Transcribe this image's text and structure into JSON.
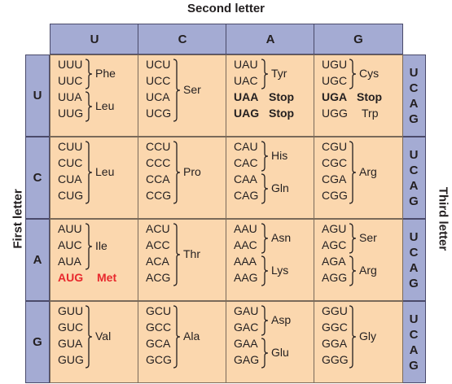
{
  "titles": {
    "second": "Second letter",
    "first": "First letter",
    "third": "Third letter"
  },
  "bases": [
    "U",
    "C",
    "A",
    "G"
  ],
  "third_column": [
    "U",
    "C",
    "A",
    "G"
  ],
  "cells": [
    [
      {
        "codons": [
          "UUU",
          "UUC",
          "UUA",
          "UUG"
        ],
        "groups": [
          {
            "rows": [
              0,
              1
            ],
            "aa": "Phe"
          },
          {
            "rows": [
              2,
              3
            ],
            "aa": "Leu"
          }
        ]
      },
      {
        "codons": [
          "UCU",
          "UCC",
          "UCA",
          "UCG"
        ],
        "groups": [
          {
            "rows": [
              0,
              3
            ],
            "aa": "Ser"
          }
        ]
      },
      {
        "codons": [
          "UAU",
          "UAC",
          "UAA",
          "UAG"
        ],
        "groups": [
          {
            "rows": [
              0,
              1
            ],
            "aa": "Tyr"
          }
        ],
        "singles": [
          {
            "row": 2,
            "aa": "Stop",
            "style": "stop"
          },
          {
            "row": 3,
            "aa": "Stop",
            "style": "stop"
          }
        ]
      },
      {
        "codons": [
          "UGU",
          "UGC",
          "UGA",
          "UGG"
        ],
        "groups": [
          {
            "rows": [
              0,
              1
            ],
            "aa": "Cys"
          }
        ],
        "singles": [
          {
            "row": 2,
            "aa": "Stop",
            "style": "stop"
          },
          {
            "row": 3,
            "aa": "Trp",
            "style": "plain"
          }
        ]
      }
    ],
    [
      {
        "codons": [
          "CUU",
          "CUC",
          "CUA",
          "CUG"
        ],
        "groups": [
          {
            "rows": [
              0,
              3
            ],
            "aa": "Leu"
          }
        ]
      },
      {
        "codons": [
          "CCU",
          "CCC",
          "CCA",
          "CCG"
        ],
        "groups": [
          {
            "rows": [
              0,
              3
            ],
            "aa": "Pro"
          }
        ]
      },
      {
        "codons": [
          "CAU",
          "CAC",
          "CAA",
          "CAG"
        ],
        "groups": [
          {
            "rows": [
              0,
              1
            ],
            "aa": "His"
          },
          {
            "rows": [
              2,
              3
            ],
            "aa": "Gln"
          }
        ]
      },
      {
        "codons": [
          "CGU",
          "CGC",
          "CGA",
          "CGG"
        ],
        "groups": [
          {
            "rows": [
              0,
              3
            ],
            "aa": "Arg"
          }
        ]
      }
    ],
    [
      {
        "codons": [
          "AUU",
          "AUC",
          "AUA",
          "AUG"
        ],
        "groups": [
          {
            "rows": [
              0,
              2
            ],
            "aa": "Ile"
          }
        ],
        "singles": [
          {
            "row": 3,
            "aa": "Met",
            "style": "start"
          }
        ]
      },
      {
        "codons": [
          "ACU",
          "ACC",
          "ACA",
          "ACG"
        ],
        "groups": [
          {
            "rows": [
              0,
              3
            ],
            "aa": "Thr"
          }
        ]
      },
      {
        "codons": [
          "AAU",
          "AAC",
          "AAA",
          "AAG"
        ],
        "groups": [
          {
            "rows": [
              0,
              1
            ],
            "aa": "Asn"
          },
          {
            "rows": [
              2,
              3
            ],
            "aa": "Lys"
          }
        ]
      },
      {
        "codons": [
          "AGU",
          "AGC",
          "AGA",
          "AGG"
        ],
        "groups": [
          {
            "rows": [
              0,
              1
            ],
            "aa": "Ser"
          },
          {
            "rows": [
              2,
              3
            ],
            "aa": "Arg"
          }
        ]
      }
    ],
    [
      {
        "codons": [
          "GUU",
          "GUC",
          "GUA",
          "GUG"
        ],
        "groups": [
          {
            "rows": [
              0,
              3
            ],
            "aa": "Val"
          }
        ]
      },
      {
        "codons": [
          "GCU",
          "GCC",
          "GCA",
          "GCG"
        ],
        "groups": [
          {
            "rows": [
              0,
              3
            ],
            "aa": "Ala"
          }
        ]
      },
      {
        "codons": [
          "GAU",
          "GAC",
          "GAA",
          "GAG"
        ],
        "groups": [
          {
            "rows": [
              0,
              1
            ],
            "aa": "Asp"
          },
          {
            "rows": [
              2,
              3
            ],
            "aa": "Glu"
          }
        ]
      },
      {
        "codons": [
          "GGU",
          "GGC",
          "GGA",
          "GGG"
        ],
        "groups": [
          {
            "rows": [
              0,
              3
            ],
            "aa": "Gly"
          }
        ]
      }
    ]
  ],
  "colors": {
    "header_fill": "#a4abd3",
    "cell_fill": "#fbd7ae",
    "start_codon": "#e8282d"
  }
}
